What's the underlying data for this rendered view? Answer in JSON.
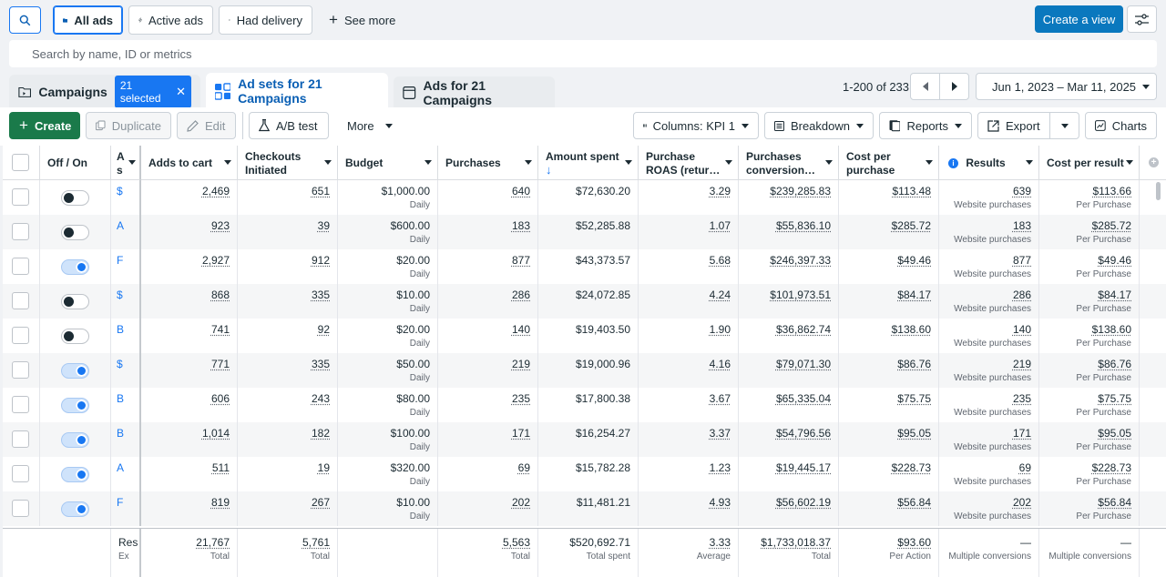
{
  "toolbar": {
    "filters": [
      "All ads",
      "Active ads",
      "Had delivery"
    ],
    "see_more": "See more",
    "create_view": "Create a view"
  },
  "search": {
    "placeholder": "Search by name, ID or metrics"
  },
  "tabs": {
    "campaigns": "Campaigns",
    "selected": "21 selected",
    "adsets": "Ad sets for 21 Campaigns",
    "ads": "Ads for 21 Campaigns"
  },
  "pagination": {
    "range": "1-200 of 233"
  },
  "date_range": "Jun 1, 2023 – Mar 11, 2025",
  "actions": {
    "create": "Create",
    "duplicate": "Duplicate",
    "edit": "Edit",
    "ab_test": "A/B test",
    "more": "More",
    "columns": "Columns: KPI 1",
    "breakdown": "Breakdown",
    "reports": "Reports",
    "export": "Export",
    "charts": "Charts"
  },
  "table": {
    "headers": {
      "offon": "Off / On",
      "name": "A s",
      "adds_to_cart": "Adds to cart",
      "checkouts": "Checkouts Initiated",
      "budget": "Budget",
      "purchases": "Purchases",
      "amount_spent": "Amount spent",
      "roas": "Purchase ROAS (retur…",
      "conv": "Purchases conversion…",
      "cpp": "Cost per purchase",
      "results": "Results",
      "cpr": "Cost per result"
    },
    "budget_sub": "Daily",
    "results_sub": "Website purchases",
    "cpr_sub": "Per Purchase",
    "rows": [
      {
        "on": false,
        "name": "$",
        "atc": "2,469",
        "ci": "651",
        "budget": "$1,000.00",
        "purchases": "640",
        "spent": "$72,630.20",
        "roas": "3.29",
        "conv": "$239,285.83",
        "cpp": "$113.48",
        "results": "639",
        "cpr": "$113.66"
      },
      {
        "on": false,
        "name": "A",
        "atc": "923",
        "ci": "39",
        "budget": "$600.00",
        "purchases": "183",
        "spent": "$52,285.88",
        "roas": "1.07",
        "conv": "$55,836.10",
        "cpp": "$285.72",
        "results": "183",
        "cpr": "$285.72"
      },
      {
        "on": true,
        "name": "F",
        "atc": "2,927",
        "ci": "912",
        "budget": "$20.00",
        "purchases": "877",
        "spent": "$43,373.57",
        "roas": "5.68",
        "conv": "$246,397.33",
        "cpp": "$49.46",
        "results": "877",
        "cpr": "$49.46"
      },
      {
        "on": false,
        "name": "$",
        "atc": "868",
        "ci": "335",
        "budget": "$10.00",
        "purchases": "286",
        "spent": "$24,072.85",
        "roas": "4.24",
        "conv": "$101,973.51",
        "cpp": "$84.17",
        "results": "286",
        "cpr": "$84.17"
      },
      {
        "on": false,
        "name": "B",
        "atc": "741",
        "ci": "92",
        "budget": "$20.00",
        "purchases": "140",
        "spent": "$19,403.50",
        "roas": "1.90",
        "conv": "$36,862.74",
        "cpp": "$138.60",
        "results": "140",
        "cpr": "$138.60"
      },
      {
        "on": true,
        "name": "$",
        "atc": "771",
        "ci": "335",
        "budget": "$50.00",
        "purchases": "219",
        "spent": "$19,000.96",
        "roas": "4.16",
        "conv": "$79,071.30",
        "cpp": "$86.76",
        "results": "219",
        "cpr": "$86.76"
      },
      {
        "on": true,
        "name": "B",
        "atc": "606",
        "ci": "243",
        "budget": "$80.00",
        "purchases": "235",
        "spent": "$17,800.38",
        "roas": "3.67",
        "conv": "$65,335.04",
        "cpp": "$75.75",
        "results": "235",
        "cpr": "$75.75"
      },
      {
        "on": true,
        "name": "B",
        "atc": "1,014",
        "ci": "182",
        "budget": "$100.00",
        "purchases": "171",
        "spent": "$16,254.27",
        "roas": "3.37",
        "conv": "$54,796.56",
        "cpp": "$95.05",
        "results": "171",
        "cpr": "$95.05"
      },
      {
        "on": true,
        "name": "A",
        "atc": "511",
        "ci": "19",
        "budget": "$320.00",
        "purchases": "69",
        "spent": "$15,782.28",
        "roas": "1.23",
        "conv": "$19,445.17",
        "cpp": "$228.73",
        "results": "69",
        "cpr": "$228.73"
      },
      {
        "on": true,
        "name": "F",
        "atc": "819",
        "ci": "267",
        "budget": "$10.00",
        "purchases": "202",
        "spent": "$11,481.21",
        "roas": "4.93",
        "conv": "$56,602.19",
        "cpp": "$56.84",
        "results": "202",
        "cpr": "$56.84"
      }
    ],
    "totals": {
      "name": "Res",
      "name_sub": "Ex",
      "atc": "21,767",
      "ci": "5,761",
      "purchases": "5,563",
      "spent": "$520,692.71",
      "roas": "3.33",
      "conv": "$1,733,018.37",
      "cpp": "$93.60",
      "results": "—",
      "cpr": "—",
      "sub_total": "Total",
      "sub_spent": "Total spent",
      "sub_avg": "Average",
      "sub_action": "Per Action",
      "sub_multi": "Multiple conversions"
    }
  }
}
